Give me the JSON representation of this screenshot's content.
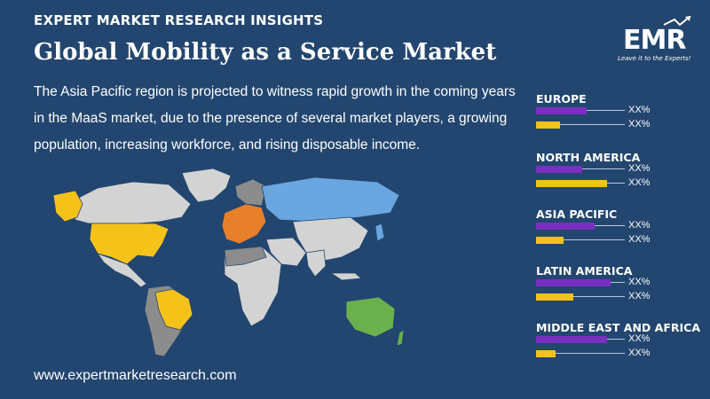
{
  "header": {
    "insights": "EXPERT MARKET RESEARCH INSIGHTS",
    "title": "Global Mobility as a Service Market"
  },
  "description": "The Asia Pacific region is projected to witness rapid growth in the coming years in the MaaS market, due to the presence of several market players, a growing population, increasing workforce, and rising disposable income.",
  "footer": {
    "url": "www.expertmarketresearch.com"
  },
  "logo": {
    "text": "EMR",
    "tagline": "Leave it to the Experts!"
  },
  "colors": {
    "background": "#22466f",
    "purple_bar": "#7b2fc0",
    "yellow_bar": "#f5c21a",
    "map_asia_pacific": "#6aa6e0",
    "map_north_america": "#f5c21a",
    "map_europe": "#e87f2a",
    "map_latin_america": "#f5c21a",
    "map_oceania": "#6ab04c",
    "map_other": "#d3d3d3",
    "map_dark": "#8c8c8c"
  },
  "regions": [
    {
      "name": "EUROPE",
      "bars": [
        {
          "color": "purple",
          "fill": 0.57,
          "value": "XX%"
        },
        {
          "color": "yellow",
          "fill": 0.27,
          "value": "XX%"
        }
      ]
    },
    {
      "name": "NORTH AMERICA",
      "bars": [
        {
          "color": "purple",
          "fill": 0.52,
          "value": "XX%"
        },
        {
          "color": "yellow",
          "fill": 0.8,
          "value": "XX%"
        }
      ]
    },
    {
      "name": "ASIA PACIFIC",
      "bars": [
        {
          "color": "purple",
          "fill": 0.66,
          "value": "XX%"
        },
        {
          "color": "yellow",
          "fill": 0.31,
          "value": "XX%"
        }
      ]
    },
    {
      "name": "LATIN AMERICA",
      "bars": [
        {
          "color": "purple",
          "fill": 0.84,
          "value": "XX%"
        },
        {
          "color": "yellow",
          "fill": 0.42,
          "value": "XX%"
        }
      ]
    },
    {
      "name": "MIDDLE EAST AND AFRICA",
      "bars": [
        {
          "color": "purple",
          "fill": 0.8,
          "value": "XX%"
        },
        {
          "color": "yellow",
          "fill": 0.22,
          "value": "XX%"
        }
      ]
    }
  ]
}
